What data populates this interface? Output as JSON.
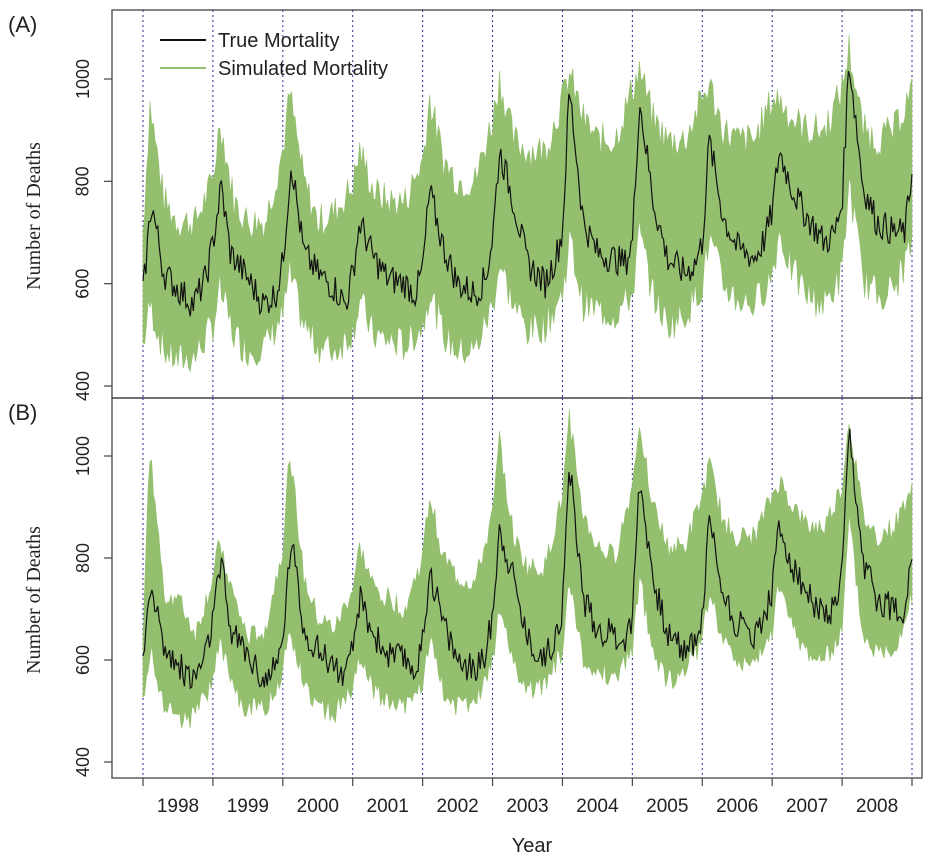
{
  "colors": {
    "true_line": "#111111",
    "simulated_band": "#93bf6e",
    "year_divider": "#2a2a9a",
    "frame": "#444444"
  },
  "panels": [
    {
      "label": "(A)"
    },
    {
      "label": "(B)"
    }
  ],
  "legend": {
    "items": [
      {
        "label": "True Mortality",
        "color": "#111111"
      },
      {
        "label": "Simulated Mortality",
        "color": "#93bf6e"
      }
    ],
    "placement": "top-left of panel A"
  },
  "axes": {
    "y_label": "Number of Deaths",
    "y_ticks": [
      "400",
      "600",
      "800",
      "1000"
    ],
    "x_label": "Year",
    "x_ticks": [
      "1998",
      "1999",
      "2000",
      "2001",
      "2002",
      "2003",
      "2004",
      "2005",
      "2006",
      "2007",
      "2008"
    ]
  },
  "chart_data": [
    {
      "panel": "(A)",
      "type": "area",
      "xlabel": "Year",
      "ylabel": "Number of Deaths",
      "xlim": [
        1998.0,
        2009.0
      ],
      "ylim": [
        380,
        1110
      ],
      "grid": false,
      "year_dividers": [
        1998,
        1999,
        2000,
        2001,
        2002,
        2003,
        2004,
        2005,
        2006,
        2007,
        2008,
        2009
      ],
      "series": [
        {
          "name": "True Mortality",
          "x": [
            1998.0,
            1998.08,
            1998.12,
            1998.3,
            1998.5,
            1998.72,
            1998.9,
            1999.0,
            1999.12,
            1999.25,
            1999.5,
            1999.72,
            1999.9,
            2000.0,
            2000.12,
            2000.3,
            2000.5,
            2000.75,
            2000.9,
            2001.0,
            2001.1,
            2001.3,
            2001.5,
            2001.75,
            2001.9,
            2002.0,
            2002.1,
            2002.3,
            2002.5,
            2002.75,
            2002.9,
            2003.0,
            2003.1,
            2003.3,
            2003.5,
            2003.75,
            2003.9,
            2004.0,
            2004.1,
            2004.3,
            2004.5,
            2004.72,
            2004.9,
            2005.0,
            2005.1,
            2005.3,
            2005.5,
            2005.75,
            2005.9,
            2006.0,
            2006.1,
            2006.3,
            2006.5,
            2006.75,
            2006.9,
            2007.0,
            2007.1,
            2007.3,
            2007.5,
            2007.75,
            2007.9,
            2008.0,
            2008.1,
            2008.3,
            2008.5,
            2008.75,
            2008.9,
            2009.0
          ],
          "y": [
            580,
            700,
            760,
            620,
            590,
            560,
            610,
            680,
            790,
            660,
            610,
            560,
            580,
            640,
            840,
            660,
            620,
            590,
            560,
            620,
            720,
            650,
            610,
            600,
            580,
            630,
            780,
            670,
            600,
            580,
            610,
            690,
            860,
            760,
            640,
            600,
            650,
            700,
            980,
            720,
            660,
            650,
            640,
            680,
            960,
            760,
            650,
            620,
            640,
            680,
            880,
            730,
            670,
            650,
            690,
            740,
            860,
            780,
            730,
            680,
            700,
            760,
            1040,
            790,
            720,
            700,
            700,
            820
          ]
        },
        {
          "name": "Simulated Mortality",
          "x": [
            1998.0,
            1998.1,
            1998.3,
            1998.5,
            1998.75,
            1999.0,
            1999.1,
            1999.3,
            1999.5,
            1999.75,
            2000.0,
            2000.1,
            2000.3,
            2000.5,
            2000.75,
            2001.0,
            2001.1,
            2001.3,
            2001.5,
            2001.75,
            2002.0,
            2002.1,
            2002.3,
            2002.5,
            2002.75,
            2003.0,
            2003.1,
            2003.3,
            2003.5,
            2003.75,
            2004.0,
            2004.1,
            2004.3,
            2004.5,
            2004.75,
            2005.0,
            2005.1,
            2005.3,
            2005.5,
            2005.75,
            2006.0,
            2006.1,
            2006.3,
            2006.5,
            2006.75,
            2007.0,
            2007.1,
            2007.3,
            2007.5,
            2007.75,
            2008.0,
            2008.1,
            2008.3,
            2008.5,
            2008.75,
            2009.0
          ],
          "lower": [
            480,
            560,
            470,
            450,
            460,
            520,
            590,
            500,
            470,
            480,
            540,
            620,
            520,
            480,
            470,
            510,
            570,
            500,
            490,
            480,
            520,
            590,
            500,
            470,
            470,
            560,
            640,
            560,
            510,
            520,
            580,
            690,
            560,
            550,
            540,
            580,
            700,
            580,
            520,
            540,
            600,
            690,
            600,
            570,
            560,
            620,
            700,
            620,
            580,
            560,
            620,
            800,
            610,
            580,
            590,
            680
          ],
          "upper": [
            700,
            950,
            760,
            720,
            720,
            800,
            920,
            760,
            720,
            720,
            860,
            970,
            800,
            720,
            740,
            790,
            860,
            780,
            760,
            760,
            840,
            960,
            840,
            800,
            800,
            920,
            1000,
            880,
            860,
            860,
            960,
            1010,
            920,
            880,
            880,
            980,
            1020,
            920,
            880,
            880,
            960,
            990,
            900,
            880,
            880,
            960,
            960,
            920,
            900,
            900,
            980,
            1060,
            900,
            880,
            900,
            980
          ]
        }
      ]
    },
    {
      "panel": "(B)",
      "type": "area",
      "xlabel": "Year",
      "ylabel": "Number of Deaths",
      "xlim": [
        1998.0,
        2009.0
      ],
      "ylim": [
        380,
        1110
      ],
      "grid": false,
      "year_dividers": [
        1998,
        1999,
        2000,
        2001,
        2002,
        2003,
        2004,
        2005,
        2006,
        2007,
        2008,
        2009
      ],
      "series": [
        {
          "name": "True Mortality",
          "x": [
            1998.0,
            1998.08,
            1998.12,
            1998.3,
            1998.5,
            1998.72,
            1998.9,
            1999.0,
            1999.12,
            1999.25,
            1999.5,
            1999.72,
            1999.9,
            2000.0,
            2000.12,
            2000.3,
            2000.5,
            2000.75,
            2000.9,
            2001.0,
            2001.1,
            2001.3,
            2001.5,
            2001.75,
            2001.9,
            2002.0,
            2002.1,
            2002.3,
            2002.5,
            2002.75,
            2002.9,
            2003.0,
            2003.1,
            2003.3,
            2003.5,
            2003.75,
            2003.9,
            2004.0,
            2004.1,
            2004.3,
            2004.5,
            2004.72,
            2004.9,
            2005.0,
            2005.1,
            2005.3,
            2005.5,
            2005.75,
            2005.9,
            2006.0,
            2006.1,
            2006.3,
            2006.5,
            2006.75,
            2006.9,
            2007.0,
            2007.1,
            2007.3,
            2007.5,
            2007.75,
            2007.9,
            2008.0,
            2008.1,
            2008.3,
            2008.5,
            2008.75,
            2008.9,
            2009.0
          ],
          "y": [
            580,
            700,
            760,
            620,
            590,
            560,
            610,
            680,
            790,
            660,
            610,
            560,
            580,
            640,
            840,
            660,
            620,
            590,
            560,
            620,
            720,
            650,
            610,
            600,
            580,
            630,
            780,
            670,
            600,
            580,
            610,
            690,
            860,
            760,
            640,
            600,
            650,
            700,
            980,
            720,
            660,
            650,
            640,
            680,
            960,
            760,
            650,
            620,
            640,
            680,
            880,
            730,
            670,
            650,
            690,
            740,
            860,
            780,
            730,
            680,
            700,
            760,
            1040,
            790,
            720,
            700,
            700,
            820
          ]
        },
        {
          "name": "Simulated Mortality",
          "x": [
            1998.0,
            1998.1,
            1998.3,
            1998.5,
            1998.75,
            1999.0,
            1999.1,
            1999.3,
            1999.5,
            1999.75,
            2000.0,
            2000.1,
            2000.3,
            2000.5,
            2000.75,
            2001.0,
            2001.1,
            2001.3,
            2001.5,
            2001.75,
            2002.0,
            2002.1,
            2002.3,
            2002.5,
            2002.75,
            2003.0,
            2003.1,
            2003.3,
            2003.5,
            2003.75,
            2004.0,
            2004.1,
            2004.3,
            2004.5,
            2004.75,
            2005.0,
            2005.1,
            2005.3,
            2005.5,
            2005.75,
            2006.0,
            2006.1,
            2006.3,
            2006.5,
            2006.75,
            2007.0,
            2007.1,
            2007.3,
            2007.5,
            2007.75,
            2008.0,
            2008.1,
            2008.3,
            2008.5,
            2008.75,
            2009.0
          ],
          "lower": [
            530,
            620,
            520,
            480,
            490,
            560,
            640,
            540,
            500,
            510,
            580,
            660,
            560,
            510,
            500,
            540,
            600,
            540,
            520,
            510,
            560,
            640,
            540,
            510,
            510,
            600,
            700,
            600,
            540,
            550,
            620,
            760,
            600,
            580,
            570,
            620,
            760,
            620,
            560,
            580,
            640,
            740,
            640,
            600,
            590,
            660,
            750,
            660,
            620,
            600,
            660,
            880,
            650,
            620,
            630,
            720
          ],
          "upper": [
            660,
            1010,
            730,
            720,
            650,
            760,
            830,
            720,
            640,
            660,
            820,
            1010,
            760,
            680,
            660,
            740,
            820,
            740,
            720,
            700,
            800,
            920,
            800,
            760,
            750,
            880,
            1030,
            840,
            780,
            780,
            920,
            1070,
            880,
            820,
            800,
            940,
            1070,
            900,
            820,
            820,
            920,
            980,
            870,
            840,
            840,
            920,
            950,
            900,
            860,
            860,
            940,
            1070,
            880,
            840,
            860,
            940
          ]
        }
      ]
    }
  ]
}
